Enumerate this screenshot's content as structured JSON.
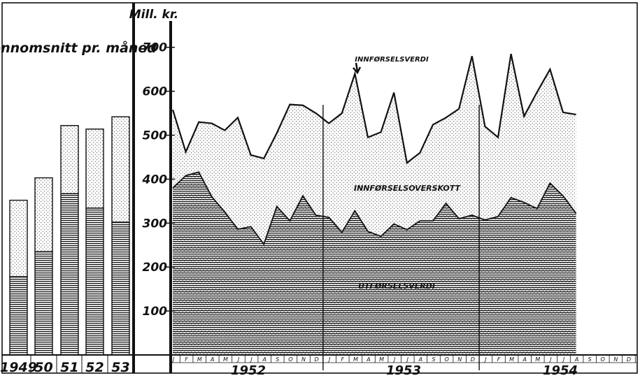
{
  "chart_data": [
    {
      "type": "bar",
      "title": "Gjennomsnitt pr. måned",
      "categories": [
        "1949",
        "50",
        "51",
        "52",
        "53"
      ],
      "series": [
        {
          "name": "UTFØRSELSVERDI",
          "values": [
            178,
            235,
            367,
            334,
            302
          ]
        },
        {
          "name": "INNFØRSELSVERDI",
          "values": [
            352,
            403,
            522,
            514,
            542
          ]
        }
      ],
      "ylim": [
        0,
        760
      ]
    },
    {
      "type": "area",
      "ylabel": "Mill. kr.",
      "yticks": [
        "100",
        "200",
        "300",
        "400",
        "500",
        "600",
        "700"
      ],
      "ylim": [
        0,
        760
      ],
      "month_labels": [
        "J",
        "F",
        "M",
        "A",
        "M",
        "J",
        "J",
        "A",
        "S",
        "O",
        "N",
        "D",
        "J",
        "F",
        "M",
        "A",
        "M",
        "J",
        "J",
        "A",
        "S",
        "O",
        "N",
        "D",
        "J",
        "F",
        "M",
        "A",
        "M",
        "J",
        "J",
        "A",
        "S",
        "O",
        "N",
        "D"
      ],
      "years": [
        "1952",
        "1953",
        "1954"
      ],
      "series": [
        {
          "name": "INNFØRSELSVERDI",
          "values": [
            558,
            462,
            530,
            527,
            511,
            540,
            455,
            447,
            505,
            570,
            568,
            550,
            527,
            550,
            640,
            495,
            507,
            597,
            437,
            460,
            524,
            540,
            560,
            680,
            520,
            495,
            685,
            543,
            598,
            650,
            552,
            547
          ]
        },
        {
          "name": "UTFØRSELSVERDI",
          "values": [
            380,
            408,
            416,
            360,
            325,
            286,
            292,
            252,
            338,
            305,
            362,
            318,
            313,
            279,
            328,
            281,
            270,
            298,
            285,
            305,
            305,
            345,
            310,
            318,
            307,
            315,
            358,
            347,
            333,
            391,
            362,
            322
          ]
        }
      ],
      "annotations": [
        "INNFØRSELSVERDI",
        "INNFØRSELSOVERSKOTT",
        "UTFØRSELSVERDI"
      ]
    }
  ]
}
